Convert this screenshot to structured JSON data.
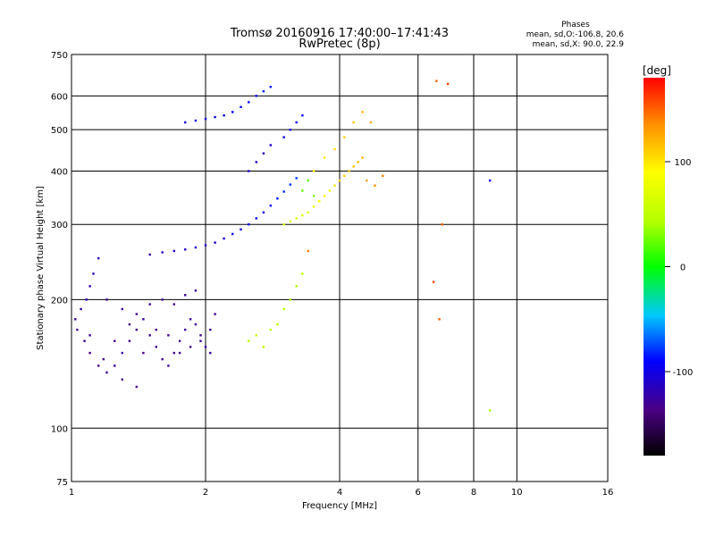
{
  "chart_data": {
    "type": "scatter",
    "title": "Tromsø 20160916 17:40:00–17:41:43",
    "subtitle": "RwPretec (8p)",
    "xlabel": "Frequency [MHz]",
    "ylabel": "Stationary phase Virtual Height [km]",
    "x_scale": "log",
    "y_scale": "log",
    "xlim": [
      1,
      16
    ],
    "ylim": [
      75,
      750
    ],
    "x_ticks": [
      1,
      2,
      4,
      6,
      8,
      10,
      16
    ],
    "x_tick_labels": [
      "1",
      "2",
      "4",
      "6",
      "8",
      "10",
      "16"
    ],
    "y_ticks": [
      75,
      100,
      200,
      300,
      400,
      500,
      600,
      750
    ],
    "y_tick_labels": [
      "75",
      "100",
      "200",
      "300",
      "400",
      "500",
      "600",
      "750"
    ],
    "grid": true,
    "stats": {
      "heading": "Phases",
      "line_o": "mean, sd,O:-106.8, 20.6",
      "line_x": "mean, sd,X:  90.0, 22.9"
    },
    "colorbar": {
      "label": "[deg]",
      "range": [
        -180,
        180
      ],
      "ticks": [
        100,
        0,
        -100
      ],
      "tick_labels": [
        "100",
        "0",
        "-100"
      ]
    },
    "series": [
      {
        "points": [
          [
            1.02,
            180,
            -125
          ],
          [
            1.05,
            190,
            -120
          ],
          [
            1.08,
            200,
            -118
          ],
          [
            1.1,
            215,
            -122
          ],
          [
            1.12,
            230,
            -115
          ],
          [
            1.15,
            250,
            -120
          ],
          [
            1.03,
            170,
            -130
          ],
          [
            1.07,
            160,
            -128
          ],
          [
            1.1,
            150,
            -132
          ],
          [
            1.15,
            140,
            -135
          ],
          [
            1.2,
            135,
            -130
          ],
          [
            1.25,
            140,
            -128
          ],
          [
            1.3,
            150,
            -125
          ],
          [
            1.35,
            160,
            -130
          ],
          [
            1.4,
            170,
            -132
          ],
          [
            1.45,
            180,
            -128
          ],
          [
            1.5,
            165,
            -135
          ],
          [
            1.55,
            155,
            -130
          ],
          [
            1.6,
            145,
            -132
          ],
          [
            1.65,
            140,
            -128
          ],
          [
            1.7,
            150,
            -134
          ],
          [
            1.75,
            160,
            -130
          ],
          [
            1.8,
            170,
            -128
          ],
          [
            1.85,
            180,
            -126
          ],
          [
            1.9,
            175,
            -130
          ],
          [
            1.95,
            165,
            -132
          ],
          [
            2.0,
            155,
            -128
          ],
          [
            2.05,
            170,
            -125
          ],
          [
            2.1,
            185,
            -128
          ],
          [
            1.2,
            200,
            -126
          ],
          [
            1.3,
            190,
            -130
          ],
          [
            1.4,
            185,
            -133
          ],
          [
            1.5,
            195,
            -128
          ],
          [
            1.6,
            200,
            -126
          ],
          [
            1.7,
            195,
            -130
          ],
          [
            1.8,
            205,
            -128
          ],
          [
            1.9,
            210,
            -125
          ],
          [
            1.3,
            130,
            -135
          ],
          [
            1.4,
            125,
            -138
          ],
          [
            1.25,
            160,
            -132
          ],
          [
            1.35,
            175,
            -130
          ],
          [
            1.45,
            150,
            -136
          ],
          [
            1.55,
            170,
            -128
          ],
          [
            1.65,
            165,
            -134
          ],
          [
            1.75,
            150,
            -130
          ],
          [
            1.85,
            155,
            -129
          ],
          [
            1.95,
            160,
            -127
          ],
          [
            2.05,
            150,
            -126
          ],
          [
            1.1,
            165,
            -129
          ],
          [
            1.18,
            145,
            -131
          ]
        ]
      },
      {
        "points": [
          [
            1.5,
            255,
            -120
          ],
          [
            1.6,
            258,
            -118
          ],
          [
            1.7,
            260,
            -115
          ],
          [
            1.8,
            262,
            -112
          ],
          [
            1.9,
            265,
            -110
          ],
          [
            2.0,
            268,
            -108
          ],
          [
            2.1,
            272,
            -105
          ],
          [
            2.2,
            278,
            -102
          ],
          [
            2.3,
            285,
            -100
          ],
          [
            2.4,
            292,
            -98
          ],
          [
            2.5,
            300,
            -95
          ],
          [
            2.6,
            310,
            -92
          ],
          [
            2.7,
            320,
            -90
          ],
          [
            2.8,
            332,
            -88
          ],
          [
            2.9,
            345,
            -85
          ],
          [
            3.0,
            358,
            -82
          ],
          [
            3.1,
            372,
            -80
          ],
          [
            3.2,
            385,
            -78
          ],
          [
            1.8,
            520,
            -105
          ],
          [
            1.9,
            525,
            -102
          ],
          [
            2.0,
            530,
            -100
          ],
          [
            2.1,
            535,
            -98
          ],
          [
            2.2,
            540,
            -97
          ],
          [
            2.3,
            550,
            -95
          ],
          [
            2.4,
            565,
            -93
          ],
          [
            2.5,
            580,
            -90
          ],
          [
            2.6,
            600,
            -88
          ],
          [
            2.7,
            615,
            -86
          ],
          [
            2.8,
            630,
            -85
          ],
          [
            2.5,
            400,
            -110
          ],
          [
            2.6,
            420,
            -112
          ],
          [
            2.7,
            440,
            -108
          ],
          [
            2.8,
            460,
            -105
          ],
          [
            3.0,
            480,
            -100
          ],
          [
            3.1,
            500,
            -98
          ],
          [
            3.2,
            520,
            -95
          ],
          [
            3.3,
            540,
            -92
          ]
        ]
      },
      {
        "points": [
          [
            3.0,
            300,
            60
          ],
          [
            3.1,
            305,
            62
          ],
          [
            3.2,
            310,
            65
          ],
          [
            3.3,
            315,
            70
          ],
          [
            3.4,
            320,
            75
          ],
          [
            3.5,
            330,
            80
          ],
          [
            3.6,
            340,
            85
          ],
          [
            3.7,
            350,
            90
          ],
          [
            3.8,
            360,
            95
          ],
          [
            3.9,
            370,
            100
          ],
          [
            4.0,
            380,
            105
          ],
          [
            4.1,
            390,
            110
          ],
          [
            4.2,
            400,
            112
          ],
          [
            4.3,
            410,
            115
          ],
          [
            4.4,
            420,
            118
          ],
          [
            4.5,
            430,
            120
          ],
          [
            3.5,
            400,
            95
          ],
          [
            3.7,
            430,
            100
          ],
          [
            3.9,
            450,
            105
          ],
          [
            4.1,
            480,
            110
          ],
          [
            4.3,
            520,
            115
          ],
          [
            4.5,
            550,
            120
          ],
          [
            4.7,
            520,
            125
          ],
          [
            4.6,
            380,
            130
          ],
          [
            4.8,
            370,
            135
          ],
          [
            5.0,
            390,
            140
          ],
          [
            3.3,
            360,
            20
          ],
          [
            3.4,
            380,
            25
          ],
          [
            3.5,
            350,
            30
          ],
          [
            2.5,
            160,
            50
          ],
          [
            2.6,
            165,
            55
          ],
          [
            2.7,
            155,
            50
          ],
          [
            2.8,
            170,
            52
          ],
          [
            2.9,
            175,
            48
          ],
          [
            3.0,
            190,
            45
          ],
          [
            3.1,
            200,
            40
          ],
          [
            3.2,
            215,
            42
          ],
          [
            3.3,
            230,
            45
          ],
          [
            3.4,
            260,
            140
          ],
          [
            6.6,
            650,
            150
          ],
          [
            7.0,
            640,
            160
          ],
          [
            6.8,
            300,
            150
          ],
          [
            6.5,
            220,
            160
          ],
          [
            6.7,
            180,
            150
          ],
          [
            8.7,
            380,
            -90
          ],
          [
            8.7,
            110,
            40
          ]
        ]
      }
    ]
  }
}
